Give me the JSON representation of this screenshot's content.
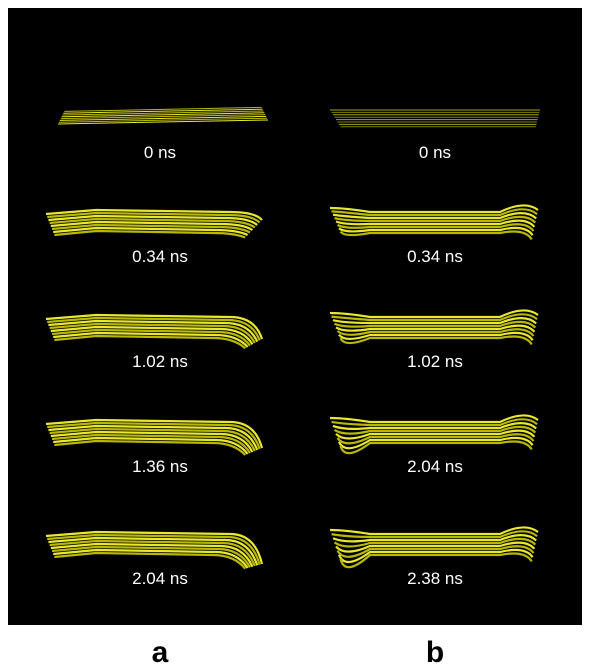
{
  "panels": [
    {
      "label": "a",
      "frames": [
        "0 ns",
        "0.34 ns",
        "1.02 ns",
        "1.36 ns",
        "2.04 ns"
      ]
    },
    {
      "label": "b",
      "frames": [
        "0 ns",
        "0.34 ns",
        "1.02 ns",
        "2.04 ns",
        "2.38 ns"
      ]
    }
  ]
}
